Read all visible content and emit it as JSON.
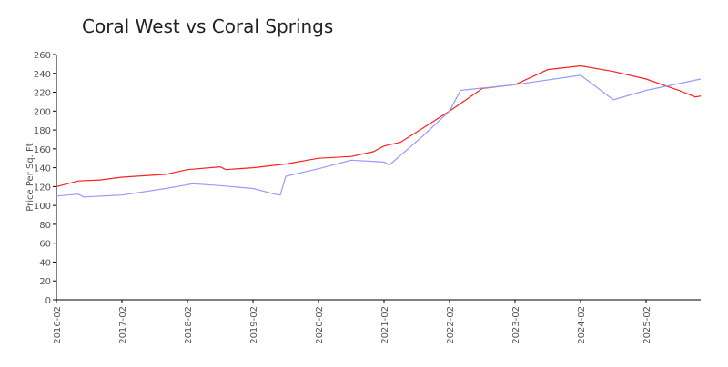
{
  "chart_data": {
    "type": "line",
    "title": "Coral West vs Coral Springs",
    "xlabel": "",
    "ylabel": "Price Per Sq. Ft",
    "ylim": [
      0,
      260
    ],
    "yticks": [
      0,
      20,
      40,
      60,
      80,
      100,
      120,
      140,
      160,
      180,
      200,
      220,
      240,
      260
    ],
    "xrange": [
      "2016-02",
      "2025-12"
    ],
    "xticks": [
      "2016-02",
      "2017-02",
      "2018-02",
      "2019-02",
      "2020-02",
      "2021-02",
      "2022-02",
      "2023-02",
      "2024-02",
      "2025-02"
    ],
    "grid": false,
    "series": [
      {
        "name": "Coral West",
        "color": "#ff2020",
        "points": [
          [
            "2016-02",
            120
          ],
          [
            "2016-06",
            126
          ],
          [
            "2016-10",
            127
          ],
          [
            "2017-02",
            130
          ],
          [
            "2017-10",
            133
          ],
          [
            "2018-02",
            138
          ],
          [
            "2018-08",
            141
          ],
          [
            "2018-09",
            138
          ],
          [
            "2019-02",
            140
          ],
          [
            "2019-08",
            144
          ],
          [
            "2020-02",
            150
          ],
          [
            "2020-08",
            152
          ],
          [
            "2020-12",
            157
          ],
          [
            "2021-02",
            163
          ],
          [
            "2021-05",
            167
          ],
          [
            "2021-08",
            178
          ],
          [
            "2022-02",
            200
          ],
          [
            "2022-08",
            224
          ],
          [
            "2023-02",
            228
          ],
          [
            "2023-08",
            244
          ],
          [
            "2024-02",
            248
          ],
          [
            "2024-08",
            242
          ],
          [
            "2025-02",
            234
          ],
          [
            "2025-08",
            222
          ],
          [
            "2025-11",
            215
          ],
          [
            "2025-12",
            216
          ]
        ]
      },
      {
        "name": "Coral Springs",
        "color": "#9999ff",
        "points": [
          [
            "2016-02",
            110
          ],
          [
            "2016-06",
            112
          ],
          [
            "2016-07",
            109
          ],
          [
            "2017-02",
            111
          ],
          [
            "2017-10",
            118
          ],
          [
            "2018-02",
            122
          ],
          [
            "2018-03",
            123
          ],
          [
            "2018-08",
            121
          ],
          [
            "2019-02",
            118
          ],
          [
            "2019-06",
            112
          ],
          [
            "2019-07",
            111
          ],
          [
            "2019-08",
            131
          ],
          [
            "2020-02",
            139
          ],
          [
            "2020-08",
            148
          ],
          [
            "2021-02",
            146
          ],
          [
            "2021-03",
            143
          ],
          [
            "2021-09",
            173
          ],
          [
            "2022-02",
            200
          ],
          [
            "2022-04",
            222
          ],
          [
            "2023-02",
            228
          ],
          [
            "2024-02",
            238
          ],
          [
            "2024-08",
            212
          ],
          [
            "2025-02",
            222
          ],
          [
            "2025-12",
            234
          ]
        ]
      }
    ]
  }
}
